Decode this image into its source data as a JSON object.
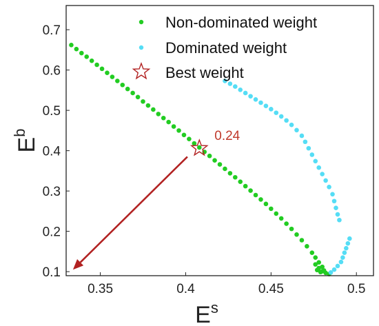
{
  "chart_data": {
    "type": "scatter",
    "title": "",
    "xlabel": "E",
    "xlabel_sup": "s",
    "ylabel": "E",
    "ylabel_sup": "b",
    "xlim": [
      0.33,
      0.51
    ],
    "ylim": [
      0.09,
      0.76
    ],
    "xticks": [
      0.35,
      0.4,
      0.45,
      0.5
    ],
    "yticks": [
      0.1,
      0.2,
      0.3,
      0.4,
      0.5,
      0.6,
      0.7
    ],
    "xtick_labels": [
      "0.35",
      "0.4",
      "0.45",
      "0.5"
    ],
    "ytick_labels": [
      "0.1",
      "0.2",
      "0.3",
      "0.4",
      "0.5",
      "0.6",
      "0.7"
    ],
    "grid": false,
    "legend_position": "top-right",
    "legend": [
      {
        "label": "Non-dominated weight",
        "marker": "dot",
        "color": "#22cc22"
      },
      {
        "label": "Dominated weight",
        "marker": "dot",
        "color": "#55ddf5"
      },
      {
        "label": "Best weight",
        "marker": "star",
        "color": "#b22222"
      }
    ],
    "series": [
      {
        "name": "Non-dominated weight",
        "color": "#22cc22",
        "points": [
          [
            0.333,
            0.662
          ],
          [
            0.336,
            0.652
          ],
          [
            0.339,
            0.642
          ],
          [
            0.342,
            0.633
          ],
          [
            0.345,
            0.623
          ],
          [
            0.348,
            0.613
          ],
          [
            0.351,
            0.603
          ],
          [
            0.354,
            0.593
          ],
          [
            0.357,
            0.583
          ],
          [
            0.36,
            0.573
          ],
          [
            0.363,
            0.563
          ],
          [
            0.366,
            0.553
          ],
          [
            0.369,
            0.543
          ],
          [
            0.372,
            0.533
          ],
          [
            0.375,
            0.522
          ],
          [
            0.378,
            0.512
          ],
          [
            0.381,
            0.502
          ],
          [
            0.384,
            0.491
          ],
          [
            0.387,
            0.481
          ],
          [
            0.39,
            0.471
          ],
          [
            0.393,
            0.46
          ],
          [
            0.396,
            0.45
          ],
          [
            0.399,
            0.439
          ],
          [
            0.402,
            0.429
          ],
          [
            0.405,
            0.418
          ],
          [
            0.408,
            0.408
          ],
          [
            0.411,
            0.397
          ],
          [
            0.414,
            0.387
          ],
          [
            0.417,
            0.376
          ],
          [
            0.42,
            0.366
          ],
          [
            0.423,
            0.355
          ],
          [
            0.426,
            0.344
          ],
          [
            0.429,
            0.334
          ],
          [
            0.432,
            0.323
          ],
          [
            0.435,
            0.312
          ],
          [
            0.438,
            0.301
          ],
          [
            0.441,
            0.29
          ],
          [
            0.444,
            0.279
          ],
          [
            0.447,
            0.268
          ],
          [
            0.45,
            0.256
          ],
          [
            0.453,
            0.244
          ],
          [
            0.456,
            0.232
          ],
          [
            0.459,
            0.219
          ],
          [
            0.462,
            0.206
          ],
          [
            0.465,
            0.192
          ],
          [
            0.468,
            0.178
          ],
          [
            0.471,
            0.163
          ],
          [
            0.474,
            0.147
          ],
          [
            0.476,
            0.135
          ],
          [
            0.478,
            0.123
          ],
          [
            0.48,
            0.112
          ],
          [
            0.481,
            0.103
          ],
          [
            0.482,
            0.097
          ],
          [
            0.484,
            0.094
          ],
          [
            0.476,
            0.118
          ],
          [
            0.478,
            0.109
          ],
          [
            0.48,
            0.101
          ],
          [
            0.477,
            0.104
          ],
          [
            0.479,
            0.099
          ]
        ]
      },
      {
        "name": "Dominated weight",
        "color": "#55ddf5",
        "points": [
          [
            0.423,
            0.573
          ],
          [
            0.426,
            0.566
          ],
          [
            0.429,
            0.559
          ],
          [
            0.432,
            0.551
          ],
          [
            0.435,
            0.543
          ],
          [
            0.438,
            0.535
          ],
          [
            0.441,
            0.527
          ],
          [
            0.444,
            0.519
          ],
          [
            0.447,
            0.511
          ],
          [
            0.45,
            0.503
          ],
          [
            0.453,
            0.494
          ],
          [
            0.456,
            0.485
          ],
          [
            0.459,
            0.475
          ],
          [
            0.462,
            0.464
          ],
          [
            0.465,
            0.451
          ],
          [
            0.468,
            0.437
          ],
          [
            0.47,
            0.422
          ],
          [
            0.472,
            0.406
          ],
          [
            0.474,
            0.39
          ],
          [
            0.476,
            0.374
          ],
          [
            0.478,
            0.358
          ],
          [
            0.48,
            0.342
          ],
          [
            0.482,
            0.326
          ],
          [
            0.484,
            0.31
          ],
          [
            0.486,
            0.292
          ],
          [
            0.487,
            0.275
          ],
          [
            0.488,
            0.258
          ],
          [
            0.489,
            0.242
          ],
          [
            0.49,
            0.228
          ],
          [
            0.485,
            0.098
          ],
          [
            0.487,
            0.105
          ],
          [
            0.489,
            0.114
          ],
          [
            0.491,
            0.124
          ],
          [
            0.492,
            0.135
          ],
          [
            0.493,
            0.147
          ],
          [
            0.494,
            0.158
          ],
          [
            0.495,
            0.17
          ],
          [
            0.496,
            0.182
          ]
        ]
      }
    ],
    "best_weight": {
      "x": 0.408,
      "y": 0.406,
      "label": "0.24",
      "color": "#b22222"
    },
    "arrow": {
      "from": [
        0.401,
        0.385
      ],
      "to": [
        0.334,
        0.105
      ],
      "color": "#b22222"
    }
  }
}
